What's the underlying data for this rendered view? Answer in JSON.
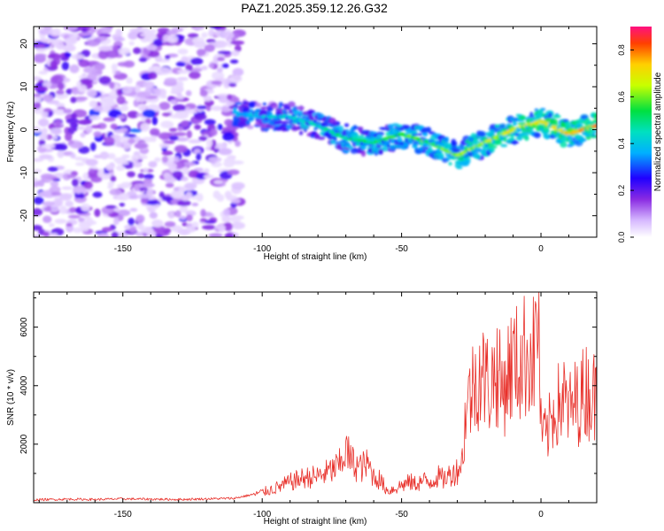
{
  "title": "PAZ1.2025.359.12.26.G32",
  "colors": {
    "snr_line": "#e8302a",
    "axis": "#000000"
  },
  "chart_data": [
    {
      "type": "heatmap",
      "xlabel": "Height of straight line (km)",
      "ylabel": "Frequency (Hz)",
      "xlim": [
        -182,
        20
      ],
      "ylim": [
        -25,
        24
      ],
      "x_ticks": [
        -150,
        -100,
        -50,
        0
      ],
      "x_tick_labels": [
        "-150",
        "-100",
        "-50",
        "0"
      ],
      "y_ticks": [
        -20,
        -10,
        0,
        10,
        20
      ],
      "y_tick_labels": [
        "-20",
        "-10",
        "0",
        "10",
        "20"
      ],
      "ridge": {
        "description": "Dominant frequency track (km, Hz)",
        "x": [
          -110,
          -100,
          -90,
          -80,
          -70,
          -60,
          -50,
          -40,
          -30,
          -20,
          -10,
          0,
          10,
          20
        ],
        "y": [
          4,
          3,
          3,
          1,
          -2,
          -3,
          -1,
          -3,
          -6,
          -3,
          0,
          2,
          -1,
          1
        ]
      },
      "noise_region_km": [
        -182,
        -108
      ],
      "colorbar": {
        "label": "Normalized spectral amplitude",
        "range": [
          0,
          0.9
        ],
        "ticks": [
          0,
          0.2,
          0.4,
          0.6,
          0.8
        ],
        "tick_labels": [
          "0.0",
          "0.2",
          "0.4",
          "0.6",
          "0.8"
        ]
      }
    },
    {
      "type": "line",
      "xlabel": "Height of straight line (km)",
      "ylabel": "SNR (10 * v/v)",
      "xlim": [
        -182,
        20
      ],
      "ylim": [
        0,
        7200
      ],
      "x_ticks": [
        -150,
        -100,
        -50,
        0
      ],
      "x_tick_labels": [
        "-150",
        "-100",
        "-50",
        "0"
      ],
      "y_ticks": [
        2000,
        4000,
        6000
      ],
      "y_tick_labels": [
        "2000",
        "4000",
        "6000"
      ],
      "series": [
        {
          "name": "SNR",
          "x": [
            -182,
            -170,
            -160,
            -150,
            -140,
            -130,
            -120,
            -110,
            -105,
            -100,
            -95,
            -90,
            -85,
            -80,
            -75,
            -72,
            -70,
            -68,
            -65,
            -62,
            -60,
            -58,
            -55,
            -52,
            -50,
            -47,
            -45,
            -42,
            -40,
            -37,
            -35,
            -32,
            -30,
            -28,
            -27,
            -25,
            -22,
            -20,
            -18,
            -16,
            -14,
            -12,
            -10,
            -8,
            -6,
            -4,
            -3,
            -2,
            -1,
            0,
            2,
            4,
            6,
            8,
            10,
            12,
            14,
            16,
            18,
            20
          ],
          "y": [
            100,
            120,
            110,
            130,
            120,
            110,
            130,
            150,
            250,
            350,
            500,
            700,
            850,
            900,
            1100,
            1300,
            1800,
            1400,
            1200,
            1300,
            900,
            800,
            400,
            500,
            600,
            700,
            650,
            750,
            700,
            900,
            800,
            1000,
            1100,
            1500,
            3200,
            3800,
            4500,
            4200,
            4000,
            4600,
            3800,
            4400,
            4800,
            4700,
            5000,
            5200,
            4800,
            5500,
            6800,
            2500,
            2200,
            3000,
            3300,
            3600,
            3100,
            3400,
            3500,
            3900,
            3700,
            3600
          ]
        }
      ]
    }
  ]
}
